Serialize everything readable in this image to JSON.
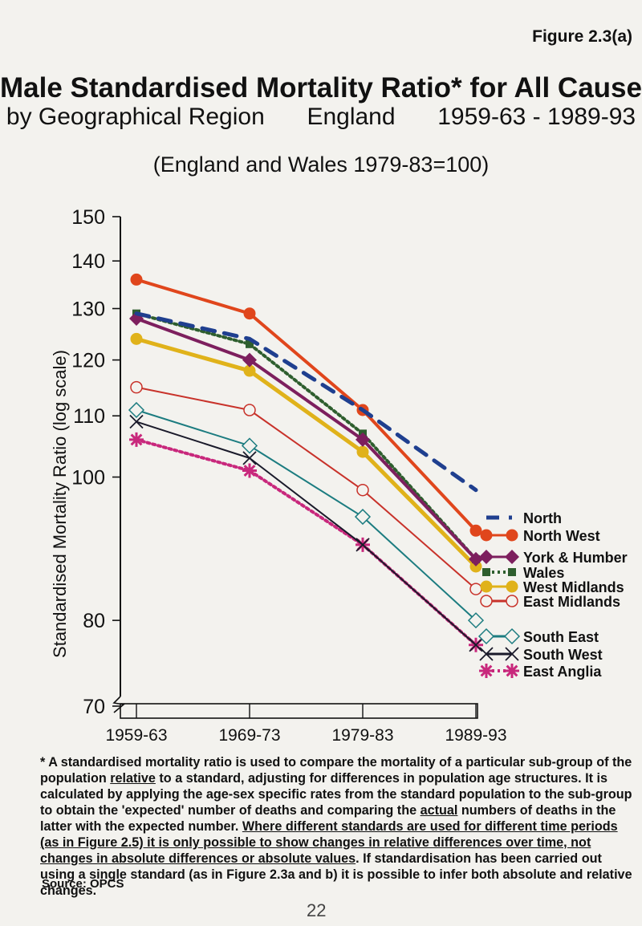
{
  "figure_label": "Figure 2.3(a)",
  "title": "Male Standardised Mortality Ratio* for All Causes",
  "subtitle": {
    "part1": "by Geographical Region",
    "part2": "England",
    "part3": "1959-63 - 1989-93"
  },
  "baseline_note": "(England and Wales 1979-83=100)",
  "footnote": {
    "p1": "* A standardised mortality ratio is used to compare the mortality of a particular sub-group of the population ",
    "p1u": "relative",
    "p2": " to a standard, adjusting for differences in population age structures.  It is calculated by applying the age-sex specific rates from the standard population to the sub-group to obtain the 'expected' number of deaths and comparing the ",
    "p2u": "actual",
    "p3": " numbers of deaths in the latter with the expected number.  ",
    "p3u": "Where different standards are used for different time periods (as in Figure 2.5) it is only possible to show changes in relative differences over time, not changes in absolute differences or absolute values",
    "p4": ".  If standardisation has been carried out using a single standard (as in Figure 2.3a and b) it is possible to infer both absolute and relative changes."
  },
  "source": "Source: OPCS",
  "page_number": "22",
  "chart_data": {
    "type": "line",
    "title": "Male Standardised Mortality Ratio* for All Causes",
    "ylabel": "Standardised Mortality Ratio (log scale)",
    "xlabel": "",
    "y_scale": "log",
    "ylim": [
      70,
      150
    ],
    "yticks": [
      70,
      80,
      100,
      110,
      120,
      130,
      140,
      150
    ],
    "categories": [
      "1959-63",
      "1969-73",
      "1979-83",
      "1989-93"
    ],
    "legend_position": "right",
    "series": [
      {
        "name": "North",
        "values": [
          129,
          124,
          111,
          98
        ],
        "color": "#1f3f8f",
        "style": "dashed",
        "marker": "none"
      },
      {
        "name": "North West",
        "values": [
          136,
          129,
          111,
          92
        ],
        "color": "#e0461c",
        "style": "solid",
        "marker": "circle-filled"
      },
      {
        "name": "York & Humber",
        "values": [
          128,
          120,
          106,
          88
        ],
        "color": "#7d1f5e",
        "style": "solid",
        "marker": "diamond-filled"
      },
      {
        "name": "Wales",
        "values": [
          129,
          123,
          107,
          88
        ],
        "color": "#2e5e2e",
        "style": "dotted",
        "marker": "square-filled"
      },
      {
        "name": "West Midlands",
        "values": [
          124,
          118,
          104,
          87
        ],
        "color": "#e0b21a",
        "style": "solid",
        "marker": "circle-filled"
      },
      {
        "name": "East Midlands",
        "values": [
          115,
          111,
          98,
          84
        ],
        "color": "#c8322a",
        "style": "solid",
        "marker": "circle-open"
      },
      {
        "name": "South East",
        "values": [
          111,
          105,
          94,
          80
        ],
        "color": "#1c7c80",
        "style": "solid",
        "marker": "diamond-open"
      },
      {
        "name": "South West",
        "values": [
          109,
          103,
          90,
          77
        ],
        "color": "#1a1a2a",
        "style": "solid",
        "marker": "x"
      },
      {
        "name": "East Anglia",
        "values": [
          106,
          101,
          90,
          77
        ],
        "color": "#c8287c",
        "style": "dotted",
        "marker": "star"
      }
    ]
  }
}
